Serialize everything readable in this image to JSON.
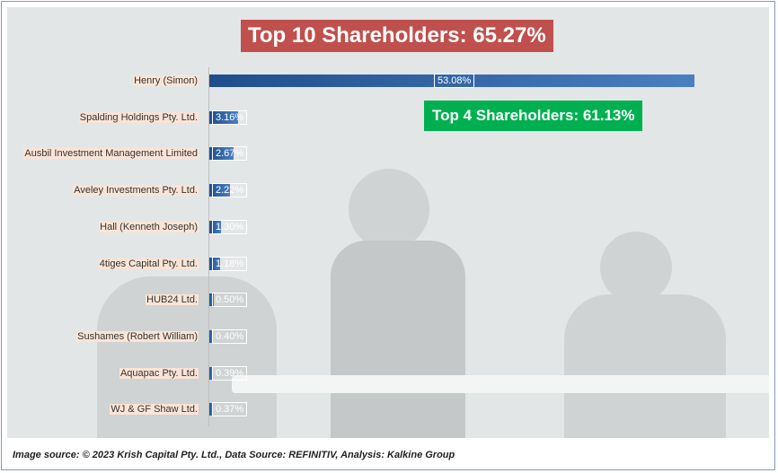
{
  "chart_data": {
    "type": "bar",
    "orientation": "horizontal",
    "title": "Top 10 Shareholders: 65.27%",
    "annotation": "Top 4 Shareholders: 61.13%",
    "categories": [
      "Henry (Simon)",
      "Spalding Holdings Pty. Ltd.",
      "Ausbil Investment Management Limited",
      "Aveley Investments Pty. Ltd.",
      "Hall (Kenneth Joseph)",
      "4tiges Capital Pty. Ltd.",
      "HUB24 Ltd.",
      "Sushames (Robert William)",
      "Aquapac Pty. Ltd.",
      "WJ & GF Shaw Ltd."
    ],
    "values": [
      53.08,
      3.16,
      2.67,
      2.22,
      1.3,
      1.18,
      0.5,
      0.4,
      0.39,
      0.37
    ],
    "labels": [
      "53.08%",
      "3.16%",
      "2.67%",
      "2.22%",
      "1.30%",
      "1.18%",
      "0.50%",
      "0.40%",
      "0.39%",
      "0.37%"
    ],
    "xlim": [
      0,
      53.08
    ],
    "bar_color": "#2e5f9e"
  },
  "source": "Image source: © 2023 Krish Capital Pty. Ltd., Data Source: REFINITIV, Analysis: Kalkine Group"
}
